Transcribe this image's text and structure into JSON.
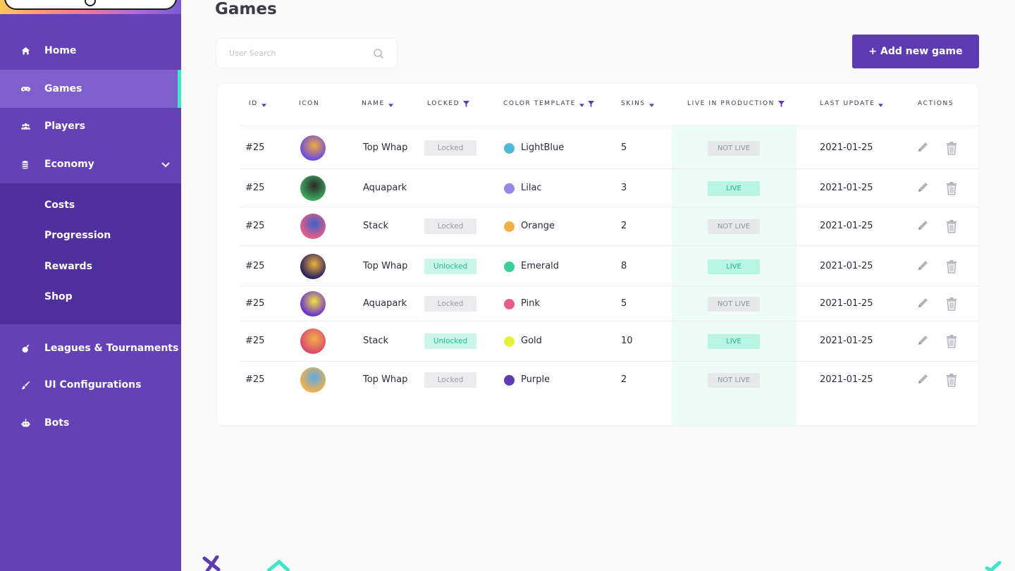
{
  "sidebar": {
    "items": [
      {
        "label": "Home",
        "icon": "home-icon"
      },
      {
        "label": "Games",
        "icon": "gamepad-icon",
        "active": true
      },
      {
        "label": "Players",
        "icon": "players-icon"
      },
      {
        "label": "Economy",
        "icon": "coins-icon",
        "expanded": true
      },
      {
        "label": "Leagues & Tournaments",
        "icon": "medal-icon"
      },
      {
        "label": "UI Configurations",
        "icon": "brush-icon"
      },
      {
        "label": "Bots",
        "icon": "robot-icon"
      }
    ],
    "economy_sub": [
      "Costs",
      "Progression",
      "Rewards",
      "Shop"
    ]
  },
  "page": {
    "title": "Games",
    "search_placeholder": "User Search",
    "add_button": "+ Add new game"
  },
  "table": {
    "columns": [
      "ID",
      "ICON",
      "NAME",
      "LOCKED",
      "COLOR TEMPLATE",
      "SKINS",
      "LIVE IN PRODUCTION",
      "LAST UPDATE",
      "ACTIONS"
    ],
    "rows": [
      {
        "id": "#25",
        "name": "Top Whap",
        "locked": "Locked",
        "color_name": "LightBlue",
        "color": "#4fb9d6",
        "skins": "5",
        "live": "NOT LIVE",
        "updated": "2021-01-25"
      },
      {
        "id": "#25",
        "name": "Aquapark",
        "locked": "",
        "color_name": "Lilac",
        "color": "#9a86e8",
        "skins": "3",
        "live": "LIVE",
        "updated": "2021-01-25"
      },
      {
        "id": "#25",
        "name": "Stack",
        "locked": "Locked",
        "color_name": "Orange",
        "color": "#f2b04a",
        "skins": "2",
        "live": "NOT LIVE",
        "updated": "2021-01-25"
      },
      {
        "id": "#25",
        "name": "Top Whap",
        "locked": "Unlocked",
        "color_name": "Emerald",
        "color": "#3ccf9a",
        "skins": "8",
        "live": "LIVE",
        "updated": "2021-01-25"
      },
      {
        "id": "#25",
        "name": "Aquapark",
        "locked": "Locked",
        "color_name": "Pink",
        "color": "#e85c86",
        "skins": "5",
        "live": "NOT LIVE",
        "updated": "2021-01-25"
      },
      {
        "id": "#25",
        "name": "Stack",
        "locked": "Unlocked",
        "color_name": "Gold",
        "color": "#e6f23a",
        "skins": "10",
        "live": "LIVE",
        "updated": "2021-01-25"
      },
      {
        "id": "#25",
        "name": "Top Whap",
        "locked": "Locked",
        "color_name": "Purple",
        "color": "#5e3bb0",
        "skins": "2",
        "live": "NOT LIVE",
        "updated": "2021-01-25"
      }
    ]
  },
  "colors": {
    "sidebar": "#6441b5",
    "submenu": "#50309c",
    "accent": "#3ee6c8",
    "primary": "#5e3bb0"
  }
}
